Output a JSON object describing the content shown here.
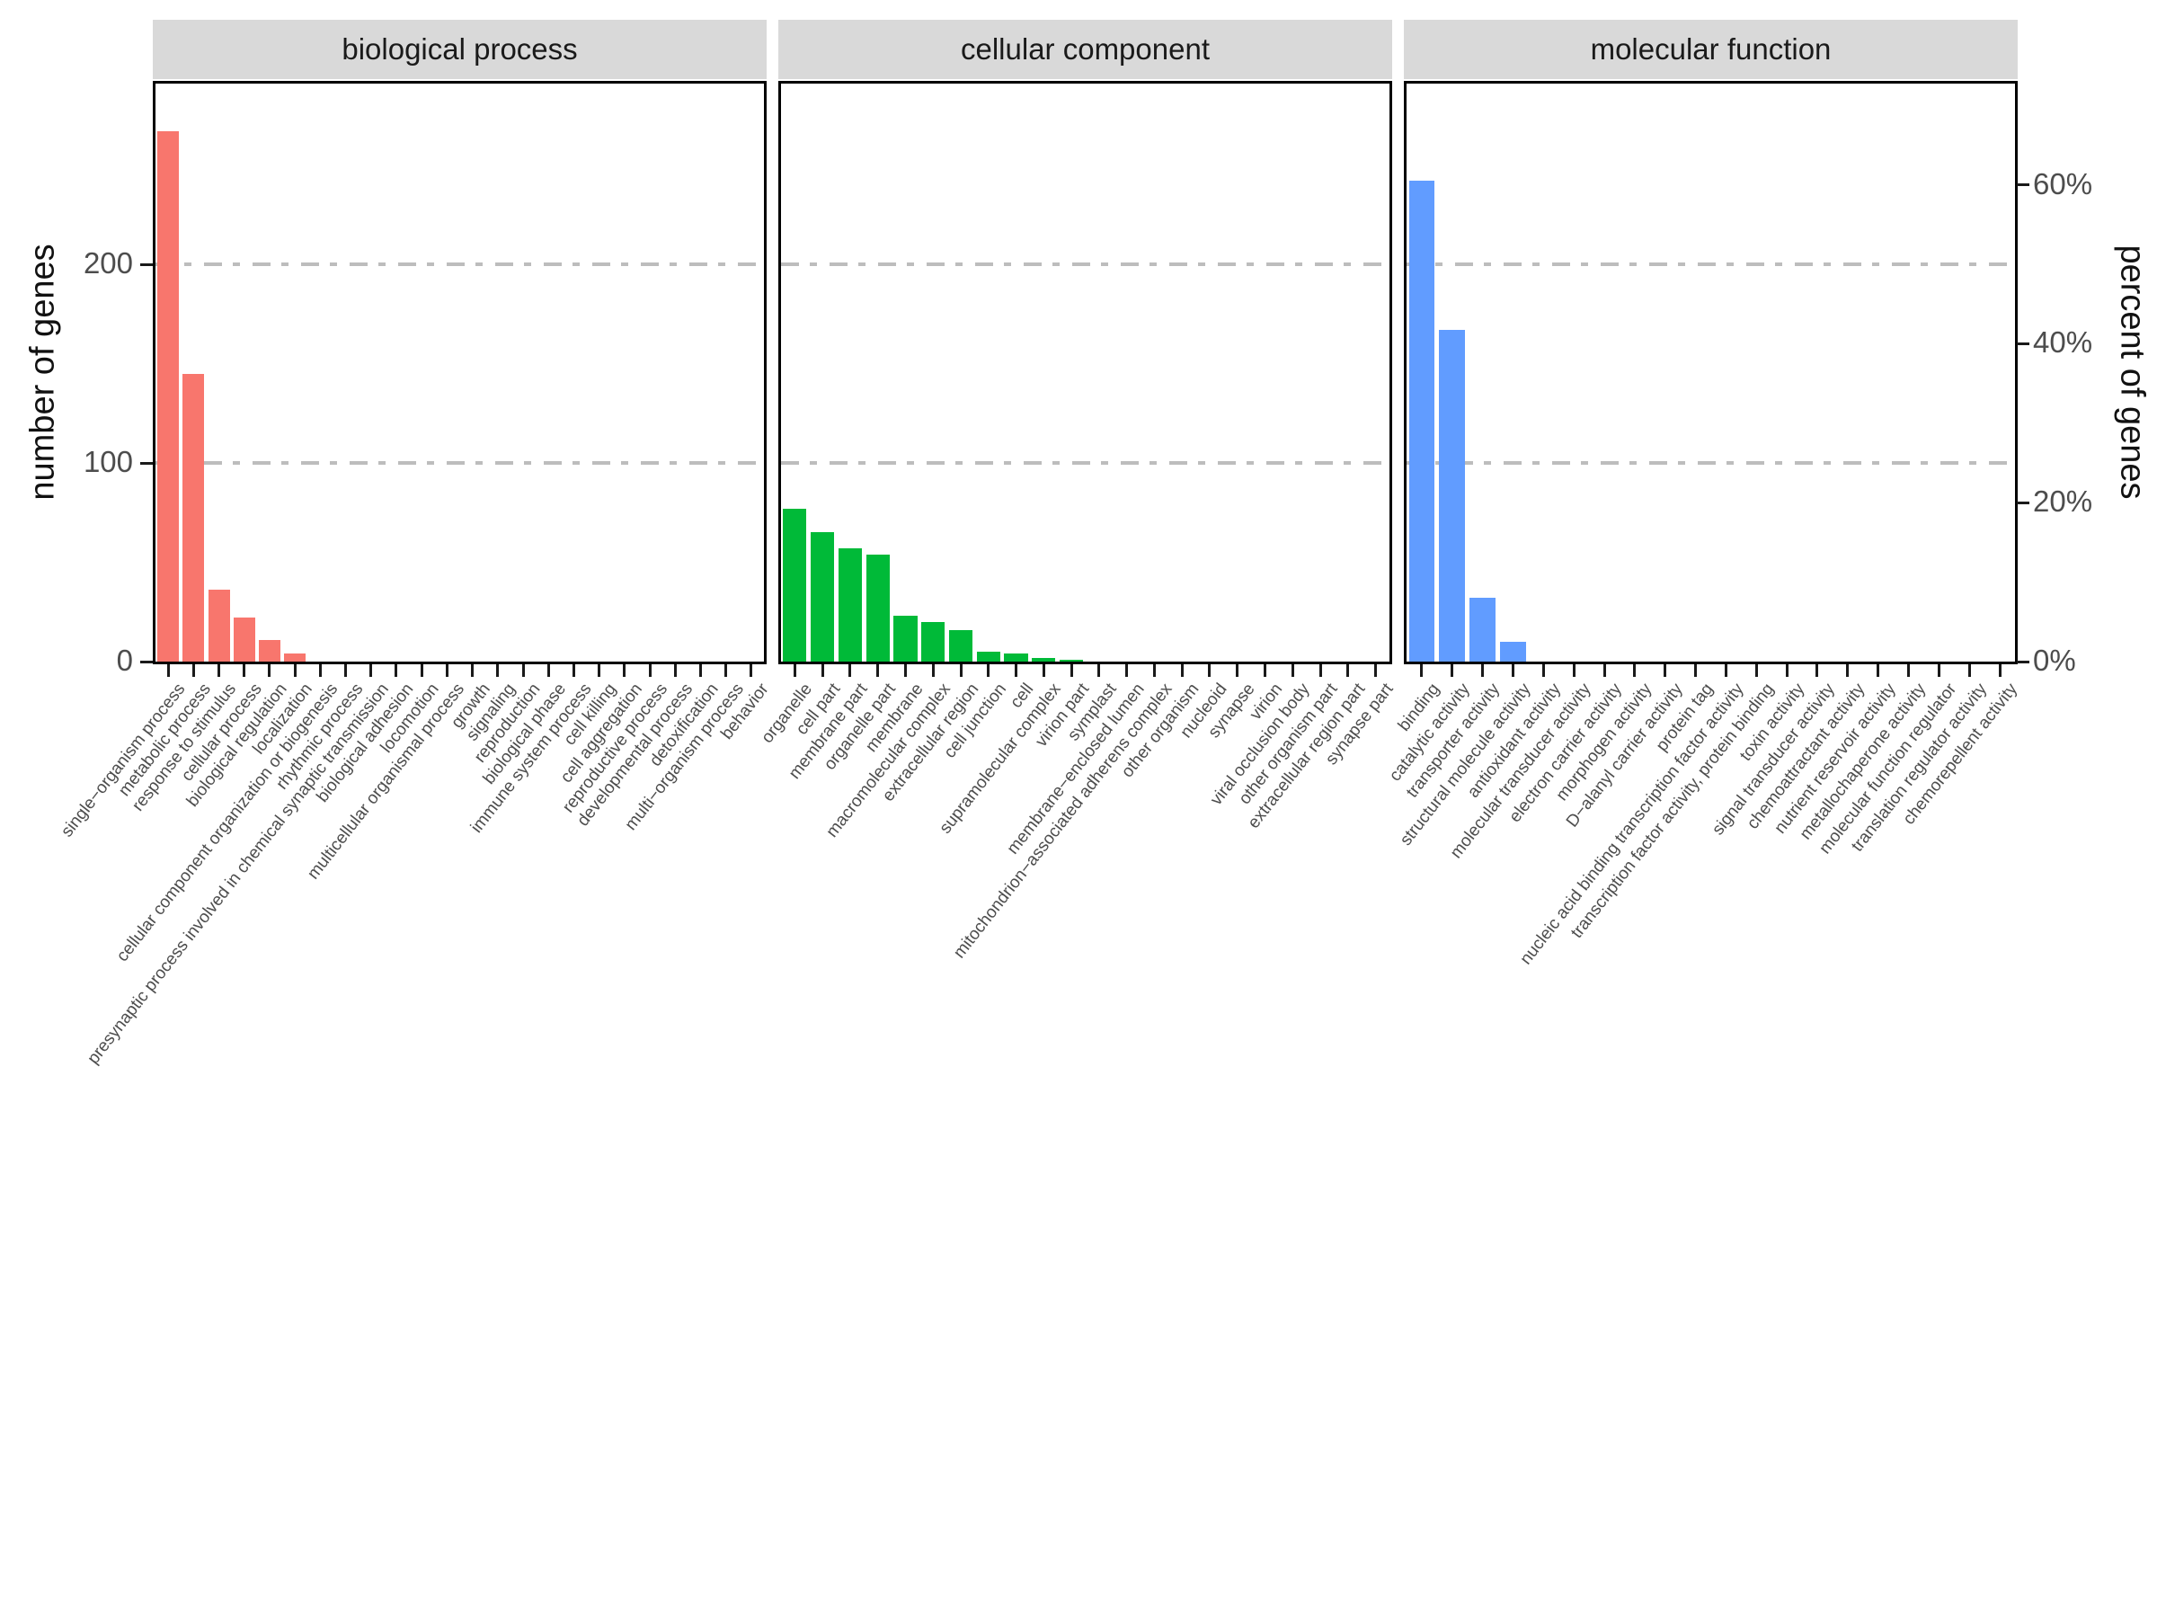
{
  "figure": {
    "left_axis": {
      "title": "number of genes",
      "ticks": [
        {
          "label": "200",
          "value": 200
        },
        {
          "label": "100",
          "value": 100
        },
        {
          "label": "0",
          "value": 0
        }
      ]
    },
    "right_axis": {
      "title": "percent of genes",
      "ticks": [
        {
          "label": "60%",
          "value": 240
        },
        {
          "label": "40%",
          "value": 160
        },
        {
          "label": "20%",
          "value": 80
        },
        {
          "label": "0%",
          "value": 0
        }
      ]
    },
    "colors": {
      "strip_background": "#D9D9D9",
      "gridline": "#BDBDBD",
      "axis_text": "#4D4D4D",
      "axis_line": "#000000"
    }
  },
  "chart_data": {
    "type": "bar",
    "orientation": "vertical",
    "ylabel_left": "number of genes",
    "ylabel_right": "percent of genes",
    "ylim": [
      0,
      291
    ],
    "gridline_values": [
      200,
      100
    ],
    "grid": "horizontal dashed lines at 100 and 200 genes (25% and 50%)",
    "legend": "none",
    "facets": [
      {
        "name": "biological process",
        "color": "#F8766D",
        "categories": [
          "single−organism process",
          "metabolic process",
          "response to stimulus",
          "cellular process",
          "biological regulation",
          "localization",
          "cellular component organization or biogenesis",
          "rhythmic process",
          "presynaptic process involved in chemical synaptic transmission",
          "biological adhesion",
          "locomotion",
          "multicellular organismal process",
          "growth",
          "signaling",
          "reproduction",
          "biological phase",
          "immune system process",
          "cell killing",
          "cell aggregation",
          "reproductive process",
          "developmental process",
          "detoxification",
          "multi−organism process",
          "behavior"
        ],
        "values": [
          267,
          145,
          36,
          22,
          11,
          4,
          0,
          0,
          0,
          0,
          0,
          0,
          0,
          0,
          0,
          0,
          0,
          0,
          0,
          0,
          0,
          0,
          0,
          0
        ]
      },
      {
        "name": "cellular component",
        "color": "#00BA38",
        "categories": [
          "organelle",
          "cell part",
          "membrane part",
          "organelle part",
          "membrane",
          "macromolecular complex",
          "extracellular region",
          "cell junction",
          "cell",
          "supramolecular complex",
          "virion part",
          "symplast",
          "membrane−enclosed lumen",
          "mitochondrion−associated adherens complex",
          "other organism",
          "nucleoid",
          "synapse",
          "virion",
          "viral occlusion body",
          "other organism part",
          "extracellular region part",
          "synapse part"
        ],
        "values": [
          77,
          65,
          57,
          54,
          23,
          20,
          16,
          5,
          4,
          2,
          1,
          0,
          0,
          0,
          0,
          0,
          0,
          0,
          0,
          0,
          0,
          0
        ]
      },
      {
        "name": "molecular function",
        "color": "#619CFF",
        "categories": [
          "binding",
          "catalytic activity",
          "transporter activity",
          "structural molecule activity",
          "antioxidant activity",
          "molecular transducer activity",
          "electron carrier activity",
          "morphogen activity",
          "D−alanyl carrier activity",
          "protein tag",
          "nucleic acid binding transcription factor activity",
          "transcription factor activity, protein binding",
          "toxin activity",
          "signal transducer activity",
          "chemoattractant activity",
          "nutrient reservoir activity",
          "metallochaperone activity",
          "molecular function regulator",
          "translation regulator activity",
          "chemorepellent activity"
        ],
        "values": [
          242,
          167,
          32,
          10,
          0,
          0,
          0,
          0,
          0,
          0,
          0,
          0,
          0,
          0,
          0,
          0,
          0,
          0,
          0,
          0
        ]
      }
    ]
  }
}
